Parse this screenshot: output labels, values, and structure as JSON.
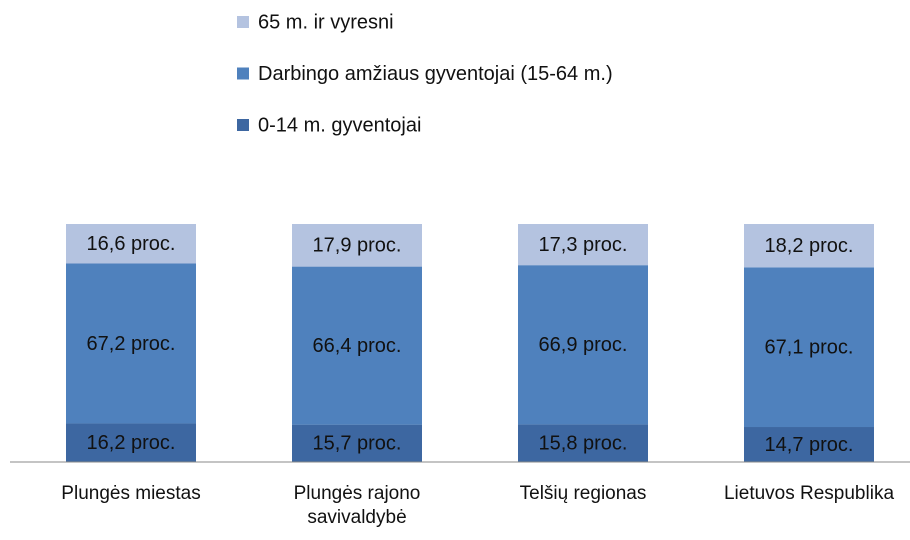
{
  "chart_data": {
    "type": "stacked_bar",
    "categories": [
      "Plungės miestas",
      "Plungės rajono savivaldybė",
      "Telšių regionas",
      "Lietuvos Respublika"
    ],
    "series": [
      {
        "name": "0-14 m. gyventojai",
        "color": "#3d67a1",
        "values": [
          16.2,
          15.7,
          15.8,
          14.7
        ],
        "value_labels": [
          "16,2 proc.",
          "15,7 proc.",
          "15,8 proc.",
          "14,7 proc."
        ]
      },
      {
        "name": "Darbingo amžiaus gyventojai (15-64 m.)",
        "color": "#4f81bd",
        "values": [
          67.2,
          66.4,
          66.9,
          67.1
        ],
        "value_labels": [
          "67,2 proc.",
          "66,4 proc.",
          "66,9 proc.",
          "67,1 proc."
        ]
      },
      {
        "name": "65 m. ir vyresni",
        "color": "#b4c3e0",
        "values": [
          16.6,
          17.9,
          17.3,
          18.2
        ],
        "value_labels": [
          "16,6 proc.",
          "17,9 proc.",
          "17,3 proc.",
          "18,2 proc."
        ]
      }
    ],
    "ylim": [
      0,
      100
    ]
  }
}
